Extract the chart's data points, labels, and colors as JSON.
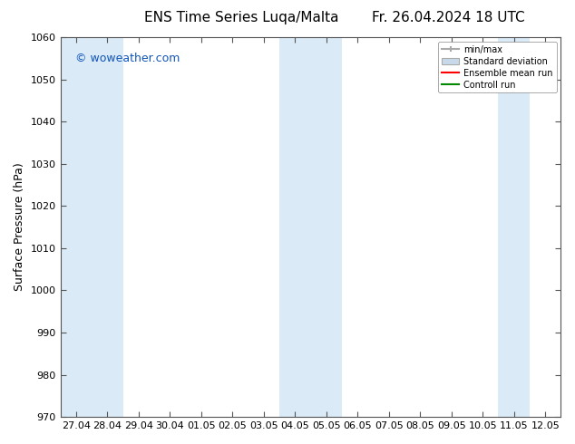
{
  "title_left": "ENS Time Series Luqa/Malta",
  "title_right": "Fr. 26.04.2024 18 UTC",
  "ylabel": "Surface Pressure (hPa)",
  "ylim": [
    970,
    1060
  ],
  "yticks": [
    970,
    980,
    990,
    1000,
    1010,
    1020,
    1030,
    1040,
    1050,
    1060
  ],
  "xtick_labels": [
    "27.04",
    "28.04",
    "29.04",
    "30.04",
    "01.05",
    "02.05",
    "03.05",
    "04.05",
    "05.05",
    "06.05",
    "07.05",
    "08.05",
    "09.05",
    "10.05",
    "11.05",
    "12.05"
  ],
  "watermark": "© woweather.com",
  "watermark_color": "#1155bb",
  "bg_color": "#ffffff",
  "plot_bg_color": "#ffffff",
  "shaded_color": "#daeaf7",
  "shaded_ranges": [
    [
      0,
      1
    ],
    [
      1,
      2
    ],
    [
      7,
      8
    ],
    [
      8,
      9
    ],
    [
      14,
      15
    ]
  ],
  "legend_labels": [
    "min/max",
    "Standard deviation",
    "Ensemble mean run",
    "Controll run"
  ],
  "legend_minmax_color": "#aaaaaa",
  "legend_std_color": "#c8daea",
  "legend_mean_color": "#ff0000",
  "legend_ctrl_color": "#008800",
  "title_fontsize": 11,
  "tick_fontsize": 8,
  "ylabel_fontsize": 9,
  "watermark_fontsize": 9
}
